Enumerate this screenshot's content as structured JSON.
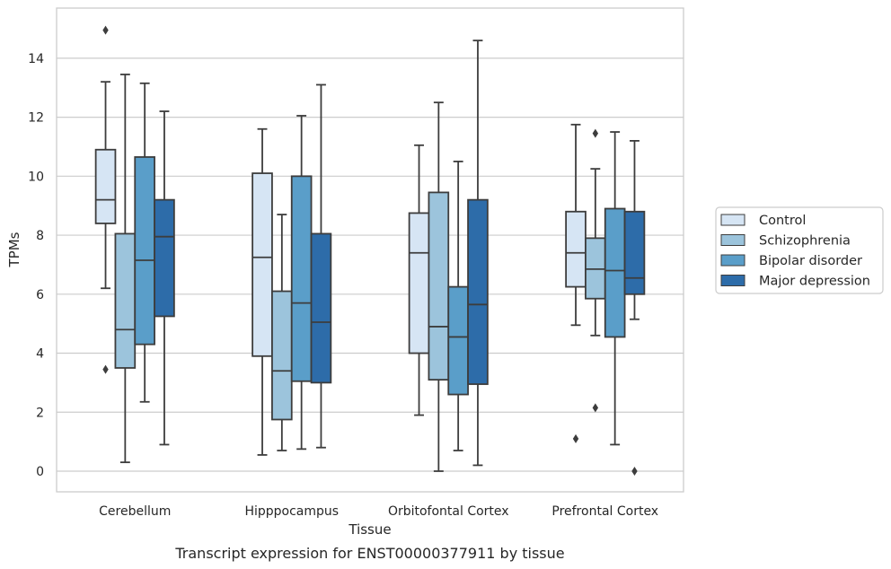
{
  "caption": "Transcript expression for ENST00000377911 by tissue",
  "chart_data": {
    "type": "box",
    "xlabel": "Tissue",
    "ylabel": "TPMs",
    "ylim": [
      -0.7,
      15.7
    ],
    "yticks": [
      0,
      2,
      4,
      6,
      8,
      10,
      12,
      14
    ],
    "grid": "horizontal",
    "legend_position": "right",
    "categories": [
      "Cerebellum",
      "Hipppocampus",
      "Orbitofontal Cortex",
      "Prefrontal Cortex"
    ],
    "series": [
      {
        "name": "Control",
        "color": "#d6e5f4",
        "boxes": [
          {
            "whisker_low": 6.2,
            "q1": 8.4,
            "median": 9.2,
            "q3": 10.9,
            "whisker_high": 13.2,
            "outliers": [
              14.95,
              3.45
            ]
          },
          {
            "whisker_low": 0.55,
            "q1": 3.9,
            "median": 7.25,
            "q3": 10.1,
            "whisker_high": 11.6,
            "outliers": []
          },
          {
            "whisker_low": 1.9,
            "q1": 4.0,
            "median": 7.4,
            "q3": 8.75,
            "whisker_high": 11.05,
            "outliers": []
          },
          {
            "whisker_low": 4.95,
            "q1": 6.25,
            "median": 7.4,
            "q3": 8.8,
            "whisker_high": 11.75,
            "outliers": [
              1.1
            ]
          }
        ]
      },
      {
        "name": "Schizophrenia",
        "color": "#9cc4dc",
        "boxes": [
          {
            "whisker_low": 0.3,
            "q1": 3.5,
            "median": 4.8,
            "q3": 8.05,
            "whisker_high": 13.45,
            "outliers": []
          },
          {
            "whisker_low": 0.7,
            "q1": 1.75,
            "median": 3.4,
            "q3": 6.1,
            "whisker_high": 8.7,
            "outliers": []
          },
          {
            "whisker_low": 0.0,
            "q1": 3.1,
            "median": 4.9,
            "q3": 9.45,
            "whisker_high": 12.5,
            "outliers": []
          },
          {
            "whisker_low": 4.6,
            "q1": 5.85,
            "median": 6.85,
            "q3": 7.9,
            "whisker_high": 10.25,
            "outliers": [
              11.45,
              2.15
            ]
          }
        ]
      },
      {
        "name": "Bipolar disorder",
        "color": "#5a9ec9",
        "boxes": [
          {
            "whisker_low": 2.35,
            "q1": 4.3,
            "median": 7.15,
            "q3": 10.65,
            "whisker_high": 13.15,
            "outliers": []
          },
          {
            "whisker_low": 0.75,
            "q1": 3.05,
            "median": 5.7,
            "q3": 10.0,
            "whisker_high": 12.05,
            "outliers": []
          },
          {
            "whisker_low": 0.7,
            "q1": 2.6,
            "median": 4.55,
            "q3": 6.25,
            "whisker_high": 10.5,
            "outliers": []
          },
          {
            "whisker_low": 0.9,
            "q1": 4.55,
            "median": 6.8,
            "q3": 8.9,
            "whisker_high": 11.5,
            "outliers": []
          }
        ]
      },
      {
        "name": "Major depression",
        "color": "#2d6ca9",
        "boxes": [
          {
            "whisker_low": 0.9,
            "q1": 5.25,
            "median": 7.95,
            "q3": 9.2,
            "whisker_high": 12.2,
            "outliers": []
          },
          {
            "whisker_low": 0.8,
            "q1": 3.0,
            "median": 5.05,
            "q3": 8.05,
            "whisker_high": 13.1,
            "outliers": []
          },
          {
            "whisker_low": 0.2,
            "q1": 2.95,
            "median": 5.65,
            "q3": 9.2,
            "whisker_high": 14.6,
            "outliers": []
          },
          {
            "whisker_low": 5.15,
            "q1": 6.0,
            "median": 6.55,
            "q3": 8.8,
            "whisker_high": 11.2,
            "outliers": [
              0.0
            ]
          }
        ]
      }
    ]
  }
}
